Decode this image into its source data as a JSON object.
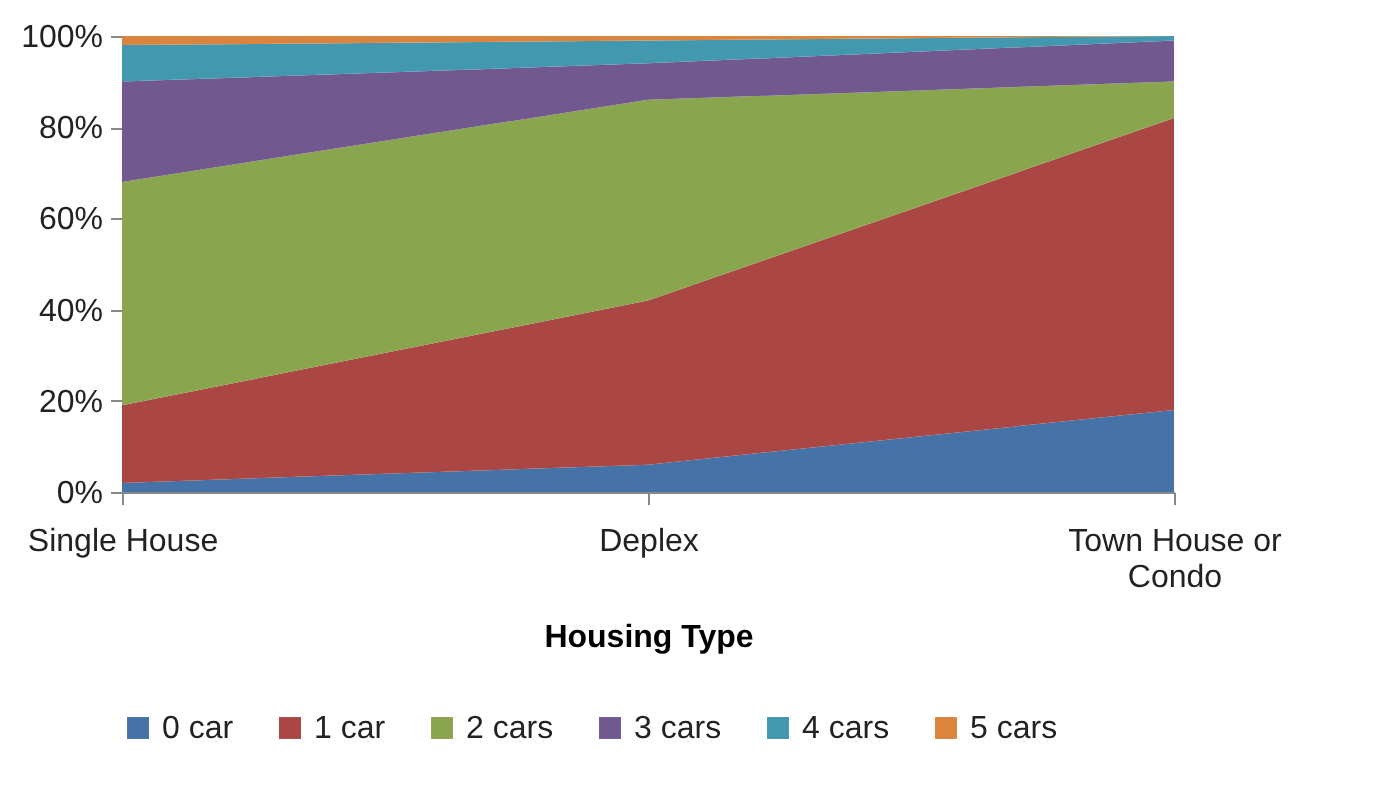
{
  "chart_data": {
    "type": "area",
    "stacked": true,
    "xlabel": "Housing Type",
    "categories": [
      "Single House",
      "Deplex",
      "Town House or Condo"
    ],
    "series": [
      {
        "name": "0 car",
        "color": "#4572a7",
        "values": [
          2,
          6,
          18
        ]
      },
      {
        "name": "1 car",
        "color": "#aa4643",
        "values": [
          17,
          36,
          64
        ]
      },
      {
        "name": "2 cars",
        "color": "#89a54e",
        "values": [
          49,
          44,
          8
        ]
      },
      {
        "name": "3 cars",
        "color": "#71588f",
        "values": [
          22,
          8,
          9
        ]
      },
      {
        "name": "4 cars",
        "color": "#4198af",
        "values": [
          8,
          5,
          1
        ]
      },
      {
        "name": "5 cars",
        "color": "#db843d",
        "values": [
          2,
          1,
          0
        ]
      }
    ],
    "ylim": [
      0,
      100
    ],
    "yticks": [
      {
        "value": 0,
        "label": "0%"
      },
      {
        "value": 20,
        "label": "20%"
      },
      {
        "value": 40,
        "label": "40%"
      },
      {
        "value": 60,
        "label": "60%"
      },
      {
        "value": 80,
        "label": "80%"
      },
      {
        "value": 100,
        "label": "100%"
      }
    ],
    "grid": false,
    "legend": "bottom"
  }
}
